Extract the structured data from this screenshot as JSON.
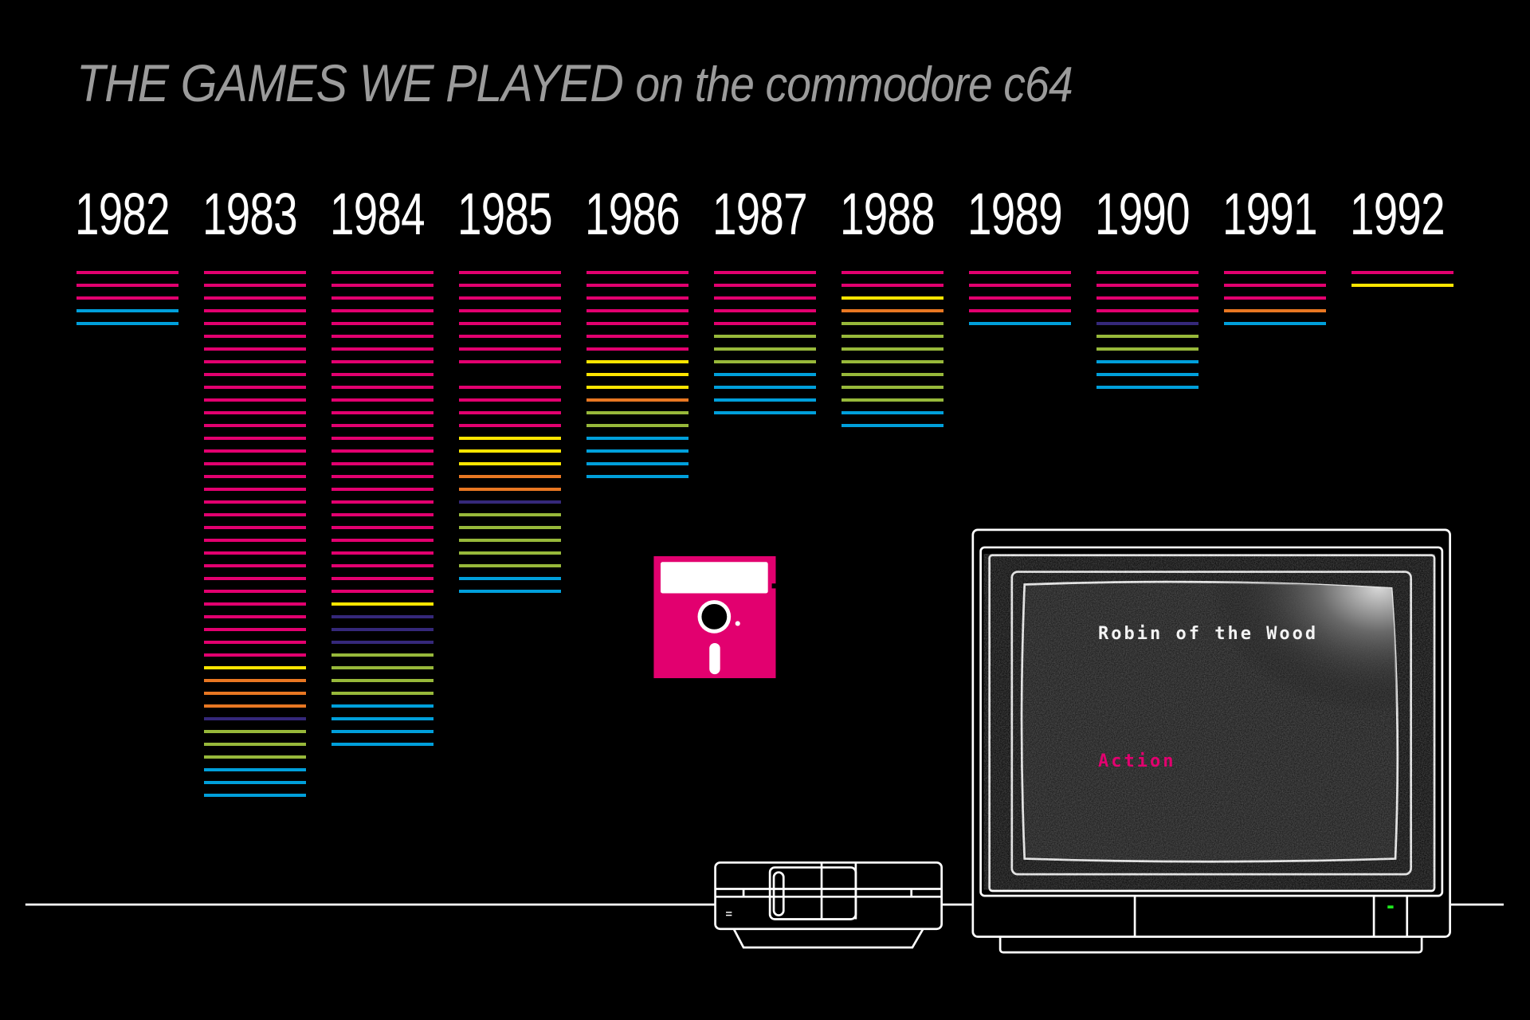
{
  "title": {
    "main": "THE GAMES WE PLAYED",
    "sub": "on the commodore c64"
  },
  "palette": {
    "pink": "#e2006f",
    "yellow": "#ffe500",
    "orange": "#e87722",
    "indigo": "#35287a",
    "green": "#97b83a",
    "cyan": "#009fdb"
  },
  "chart_data": {
    "type": "bar",
    "categories": [
      "1982",
      "1983",
      "1984",
      "1985",
      "1986",
      "1987",
      "1988",
      "1989",
      "1990",
      "1991",
      "1992"
    ],
    "series_note_colors": [
      "pink",
      "yellow",
      "orange",
      "indigo",
      "green",
      "cyan"
    ],
    "columns": [
      {
        "year": "1982",
        "games": [
          [
            "pink",
            3
          ],
          [
            "cyan",
            2
          ]
        ]
      },
      {
        "year": "1983",
        "games": [
          [
            "pink",
            31
          ],
          [
            "yellow",
            1
          ],
          [
            "orange",
            3
          ],
          [
            "indigo",
            1
          ],
          [
            "green",
            3
          ],
          [
            "cyan",
            3
          ]
        ]
      },
      {
        "year": "1984",
        "games": [
          [
            "pink",
            26
          ],
          [
            "yellow",
            1
          ],
          [
            "indigo",
            3
          ],
          [
            "green",
            4
          ],
          [
            "cyan",
            4
          ]
        ]
      },
      {
        "year": "1985",
        "games": [
          [
            "pink",
            8
          ],
          [
            "gap",
            1
          ],
          [
            "pink",
            4
          ],
          [
            "yellow",
            3
          ],
          [
            "orange",
            2
          ],
          [
            "indigo",
            1
          ],
          [
            "green",
            5
          ],
          [
            "cyan",
            2
          ]
        ]
      },
      {
        "year": "1986",
        "games": [
          [
            "pink",
            7
          ],
          [
            "yellow",
            3
          ],
          [
            "orange",
            1
          ],
          [
            "green",
            2
          ],
          [
            "cyan",
            4
          ]
        ]
      },
      {
        "year": "1987",
        "games": [
          [
            "pink",
            5
          ],
          [
            "green",
            3
          ],
          [
            "cyan",
            4
          ]
        ]
      },
      {
        "year": "1988",
        "games": [
          [
            "pink",
            2
          ],
          [
            "yellow",
            1
          ],
          [
            "orange",
            1
          ],
          [
            "green",
            7
          ],
          [
            "cyan",
            2
          ]
        ]
      },
      {
        "year": "1989",
        "games": [
          [
            "pink",
            4
          ],
          [
            "cyan",
            1
          ]
        ]
      },
      {
        "year": "1990",
        "games": [
          [
            "pink",
            4
          ],
          [
            "indigo",
            1
          ],
          [
            "green",
            2
          ],
          [
            "cyan",
            3
          ]
        ]
      },
      {
        "year": "1991",
        "games": [
          [
            "pink",
            3
          ],
          [
            "orange",
            1
          ],
          [
            "cyan",
            1
          ]
        ]
      },
      {
        "year": "1992",
        "games": [
          [
            "pink",
            1
          ],
          [
            "yellow",
            1
          ]
        ]
      }
    ]
  },
  "screen": {
    "game_title": "Robin of the Wood",
    "genre": "Action",
    "genre_color": "#e2006f",
    "led_color": "#1ee81e"
  }
}
